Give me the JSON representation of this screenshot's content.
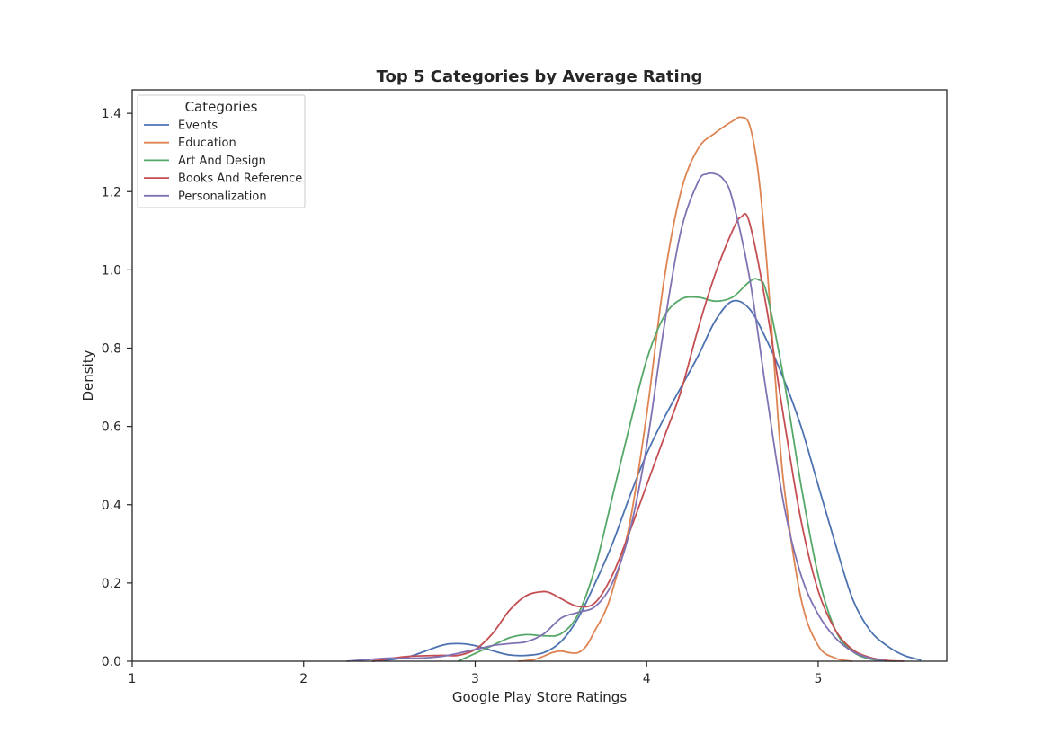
{
  "chart_data": {
    "type": "line",
    "title": "Top 5 Categories by Average Rating",
    "xlabel": "Google Play Store Ratings",
    "ylabel": "Density",
    "xlim": [
      1,
      5.75
    ],
    "ylim": [
      0,
      1.46
    ],
    "xticks": [
      "1",
      "2",
      "3",
      "4",
      "5"
    ],
    "yticks": [
      "0.0",
      "0.2",
      "0.4",
      "0.6",
      "0.8",
      "1.0",
      "1.2",
      "1.4"
    ],
    "grid": false,
    "legend": {
      "title": "Categories",
      "placement": "upper-left"
    },
    "series": [
      {
        "name": "Events",
        "color": "#4c72b0",
        "x": [
          2.4,
          2.6,
          2.8,
          2.9,
          3.0,
          3.1,
          3.2,
          3.3,
          3.4,
          3.5,
          3.6,
          3.7,
          3.8,
          3.9,
          4.0,
          4.1,
          4.2,
          4.3,
          4.4,
          4.5,
          4.6,
          4.7,
          4.8,
          4.9,
          5.0,
          5.1,
          5.2,
          5.3,
          5.4,
          5.5,
          5.6
        ],
        "y": [
          0.0,
          0.01,
          0.04,
          0.045,
          0.04,
          0.027,
          0.016,
          0.015,
          0.022,
          0.05,
          0.11,
          0.2,
          0.3,
          0.42,
          0.53,
          0.62,
          0.7,
          0.78,
          0.87,
          0.92,
          0.9,
          0.82,
          0.72,
          0.6,
          0.45,
          0.3,
          0.16,
          0.08,
          0.04,
          0.015,
          0.003
        ]
      },
      {
        "name": "Education",
        "color": "#dd8452",
        "x": [
          3.25,
          3.35,
          3.45,
          3.5,
          3.55,
          3.6,
          3.65,
          3.7,
          3.75,
          3.8,
          3.9,
          4.0,
          4.1,
          4.2,
          4.3,
          4.4,
          4.5,
          4.55,
          4.6,
          4.65,
          4.7,
          4.75,
          4.8,
          4.9,
          5.0,
          5.1,
          5.2
        ],
        "y": [
          0.0,
          0.005,
          0.022,
          0.026,
          0.022,
          0.022,
          0.04,
          0.08,
          0.12,
          0.18,
          0.35,
          0.63,
          0.97,
          1.2,
          1.31,
          1.35,
          1.38,
          1.39,
          1.37,
          1.25,
          1.02,
          0.72,
          0.45,
          0.16,
          0.04,
          0.008,
          0.0
        ]
      },
      {
        "name": "Art And Design",
        "color": "#55a868",
        "x": [
          2.9,
          3.0,
          3.1,
          3.2,
          3.3,
          3.4,
          3.5,
          3.6,
          3.7,
          3.8,
          3.9,
          4.0,
          4.1,
          4.2,
          4.3,
          4.4,
          4.5,
          4.6,
          4.65,
          4.7,
          4.8,
          4.9,
          5.0,
          5.1,
          5.2,
          5.3,
          5.4,
          5.45
        ],
        "y": [
          0.0,
          0.02,
          0.04,
          0.06,
          0.068,
          0.065,
          0.07,
          0.12,
          0.24,
          0.42,
          0.6,
          0.77,
          0.88,
          0.925,
          0.93,
          0.92,
          0.93,
          0.97,
          0.975,
          0.94,
          0.72,
          0.45,
          0.22,
          0.08,
          0.025,
          0.006,
          0.001,
          0.0
        ]
      },
      {
        "name": "Books And Reference",
        "color": "#c44e52",
        "x": [
          2.4,
          2.6,
          2.8,
          2.9,
          3.0,
          3.1,
          3.2,
          3.3,
          3.4,
          3.45,
          3.5,
          3.6,
          3.7,
          3.8,
          3.9,
          4.0,
          4.1,
          4.2,
          4.3,
          4.4,
          4.5,
          4.55,
          4.6,
          4.7,
          4.8,
          4.9,
          5.0,
          5.1,
          5.2,
          5.3,
          5.4,
          5.5
        ],
        "y": [
          0.0,
          0.012,
          0.015,
          0.015,
          0.03,
          0.07,
          0.13,
          0.168,
          0.178,
          0.172,
          0.16,
          0.14,
          0.15,
          0.22,
          0.33,
          0.45,
          0.57,
          0.69,
          0.85,
          0.99,
          1.1,
          1.135,
          1.12,
          0.9,
          0.62,
          0.36,
          0.18,
          0.08,
          0.03,
          0.01,
          0.002,
          0.0
        ]
      },
      {
        "name": "Personalization",
        "color": "#8172b3",
        "x": [
          2.25,
          2.4,
          2.5,
          2.6,
          2.8,
          3.0,
          3.1,
          3.2,
          3.3,
          3.4,
          3.5,
          3.6,
          3.7,
          3.8,
          3.9,
          4.0,
          4.1,
          4.2,
          4.3,
          4.35,
          4.4,
          4.45,
          4.5,
          4.6,
          4.7,
          4.8,
          4.9,
          5.0,
          5.1,
          5.2,
          5.3,
          5.4
        ],
        "y": [
          0.0,
          0.005,
          0.008,
          0.007,
          0.012,
          0.03,
          0.04,
          0.045,
          0.05,
          0.07,
          0.11,
          0.125,
          0.14,
          0.2,
          0.33,
          0.55,
          0.85,
          1.1,
          1.225,
          1.245,
          1.245,
          1.23,
          1.18,
          0.98,
          0.68,
          0.4,
          0.22,
          0.12,
          0.06,
          0.025,
          0.008,
          0.0
        ]
      }
    ]
  }
}
